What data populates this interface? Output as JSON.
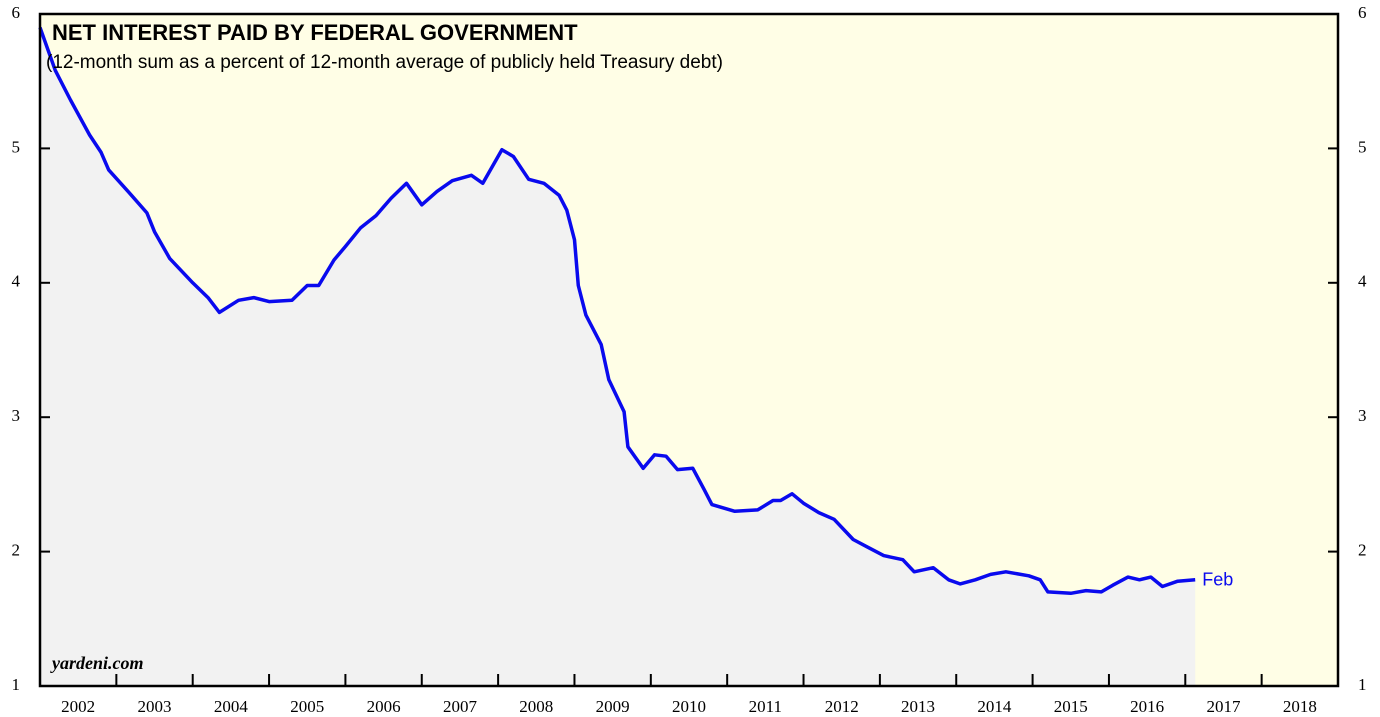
{
  "chart_data": {
    "type": "area-line",
    "title": "NET INTEREST PAID BY FEDERAL GOVERNMENT",
    "subtitle": "(12-month sum as a percent of 12-month average of publicly held Treasury debt)",
    "source": "yardeni.com",
    "end_label": "Feb",
    "color": "#0a0aee",
    "x": [
      2002.0,
      2002.2,
      2002.4,
      2002.65,
      2002.8,
      2002.9,
      2003.2,
      2003.4,
      2003.5,
      2003.7,
      2004.0,
      2004.2,
      2004.35,
      2004.6,
      2004.8,
      2005.0,
      2005.3,
      2005.5,
      2005.65,
      2005.85,
      2006.0,
      2006.2,
      2006.4,
      2006.6,
      2006.8,
      2007.0,
      2007.2,
      2007.4,
      2007.65,
      2007.8,
      2008.05,
      2008.2,
      2008.4,
      2008.6,
      2008.8,
      2008.9,
      2009.0,
      2009.05,
      2009.15,
      2009.35,
      2009.45,
      2009.65,
      2009.7,
      2009.9,
      2010.05,
      2010.2,
      2010.35,
      2010.55,
      2010.7,
      2010.8,
      2011.1,
      2011.4,
      2011.6,
      2011.7,
      2011.85,
      2012.0,
      2012.2,
      2012.4,
      2012.65,
      2012.85,
      2013.05,
      2013.3,
      2013.45,
      2013.7,
      2013.9,
      2014.05,
      2014.25,
      2014.45,
      2014.65,
      2014.95,
      2015.1,
      2015.2,
      2015.5,
      2015.7,
      2015.9,
      2016.05,
      2016.25,
      2016.4,
      2016.55,
      2016.7,
      2016.9,
      2017.13
    ],
    "values": [
      5.9,
      5.58,
      5.36,
      5.1,
      4.97,
      4.84,
      4.65,
      4.52,
      4.38,
      4.18,
      4.0,
      3.89,
      3.78,
      3.87,
      3.89,
      3.86,
      3.87,
      3.98,
      3.98,
      4.17,
      4.27,
      4.41,
      4.5,
      4.63,
      4.74,
      4.58,
      4.68,
      4.76,
      4.8,
      4.74,
      4.99,
      4.94,
      4.77,
      4.74,
      4.65,
      4.54,
      4.32,
      3.98,
      3.76,
      3.54,
      3.28,
      3.04,
      2.78,
      2.62,
      2.72,
      2.71,
      2.61,
      2.62,
      2.46,
      2.35,
      2.3,
      2.31,
      2.38,
      2.38,
      2.43,
      2.36,
      2.29,
      2.24,
      2.09,
      2.03,
      1.97,
      1.94,
      1.85,
      1.88,
      1.79,
      1.76,
      1.79,
      1.83,
      1.85,
      1.82,
      1.79,
      1.7,
      1.69,
      1.71,
      1.7,
      1.75,
      1.81,
      1.79,
      1.81,
      1.74,
      1.78,
      1.79
    ],
    "xlim": [
      2002,
      2019
    ],
    "xticks": [
      2002,
      2003,
      2004,
      2005,
      2006,
      2007,
      2008,
      2009,
      2010,
      2011,
      2012,
      2013,
      2014,
      2015,
      2016,
      2017,
      2018
    ],
    "ylim": [
      1,
      6
    ],
    "yticks": [
      1,
      2,
      3,
      4,
      5,
      6
    ]
  }
}
